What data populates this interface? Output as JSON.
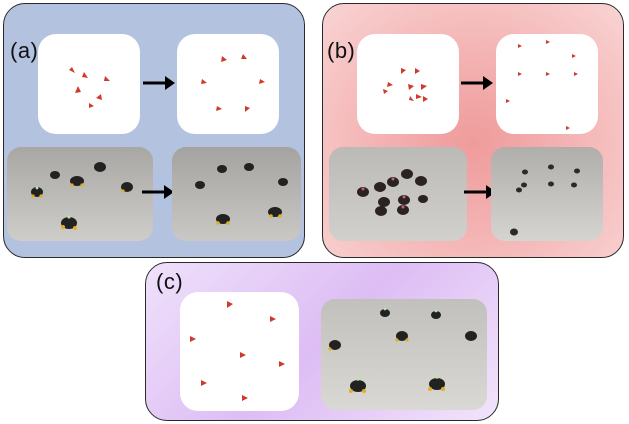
{
  "panels": {
    "a": {
      "label": "(a)",
      "color": "#b3c2df"
    },
    "b": {
      "label": "(b)",
      "color": "#f4b3b3"
    },
    "c": {
      "label": "(c)",
      "color": "#ddbdf4"
    }
  },
  "marker_color": "#d03a2a",
  "floor_color": "#c4c2be"
}
